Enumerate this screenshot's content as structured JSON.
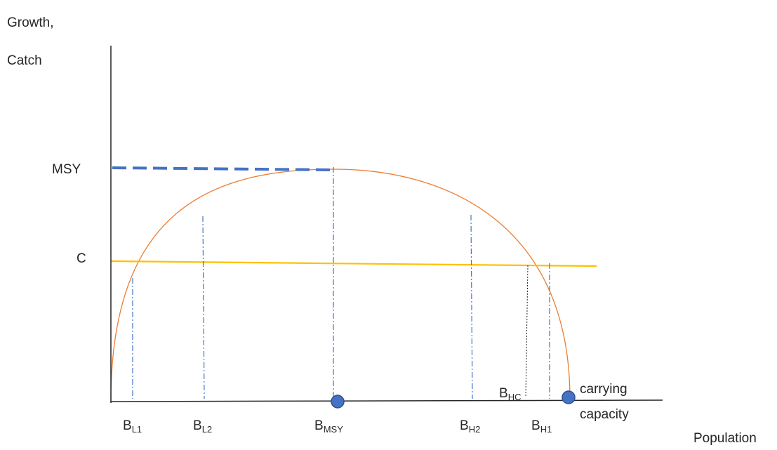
{
  "chart_data": {
    "type": "line",
    "title": "",
    "ylabel_lines": [
      "Growth,",
      "Catch"
    ],
    "xlabel": "Population",
    "y_ticks": {
      "msy": "MSY",
      "c": "C"
    },
    "carrying_capacity_lines": [
      "carrying",
      "capacity"
    ],
    "x_markers": [
      {
        "key": "bl1",
        "base": "B",
        "sub": "L1"
      },
      {
        "key": "bl2",
        "base": "B",
        "sub": "L2"
      },
      {
        "key": "bmsy",
        "base": "B",
        "sub": "MSY"
      },
      {
        "key": "bh2",
        "base": "B",
        "sub": "H2"
      },
      {
        "key": "bh1",
        "base": "B",
        "sub": "H1"
      },
      {
        "key": "bhc",
        "base": "B",
        "sub": "HC"
      }
    ],
    "series": [
      {
        "kind": "growth-curve",
        "color": "#ed7d31"
      },
      {
        "kind": "catch-line",
        "color": "#ffc000"
      },
      {
        "kind": "msy-dashed",
        "color": "#4472c4"
      }
    ],
    "colors": {
      "axis": "#262626",
      "growth": "#ed7d31",
      "catch": "#ffc000",
      "marker": "#4472c4",
      "dot_fill": "#4472c4",
      "dot_stroke": "#2f528f"
    }
  }
}
